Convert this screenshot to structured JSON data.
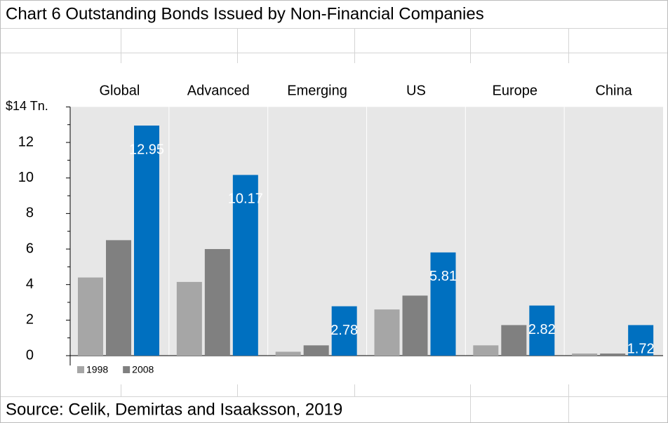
{
  "title": "Chart 6 Outstanding Bonds Issued by Non-Financial Companies",
  "source": "Source: Celik, Demirtas and Isaaksson, 2019",
  "chart_data": {
    "type": "bar",
    "categories": [
      "Global",
      "Advanced",
      "Emerging",
      "US",
      "Europe",
      "China"
    ],
    "series": [
      {
        "name": "1998",
        "color": "#a6a6a6",
        "values": [
          4.4,
          4.15,
          0.22,
          2.6,
          0.58,
          0.12
        ]
      },
      {
        "name": "2008",
        "color": "#808080",
        "values": [
          6.5,
          6.0,
          0.58,
          3.38,
          1.72,
          0.12
        ]
      },
      {
        "color": "#0070c0",
        "values": [
          12.95,
          10.17,
          2.78,
          5.81,
          2.82,
          1.72
        ],
        "data_labels": true
      }
    ],
    "ylim": [
      0,
      14
    ],
    "yticks": [
      0,
      2,
      4,
      6,
      8,
      10,
      12,
      {
        "value": 14,
        "label": "$14 Tn."
      }
    ],
    "legend": "bottom-left"
  }
}
